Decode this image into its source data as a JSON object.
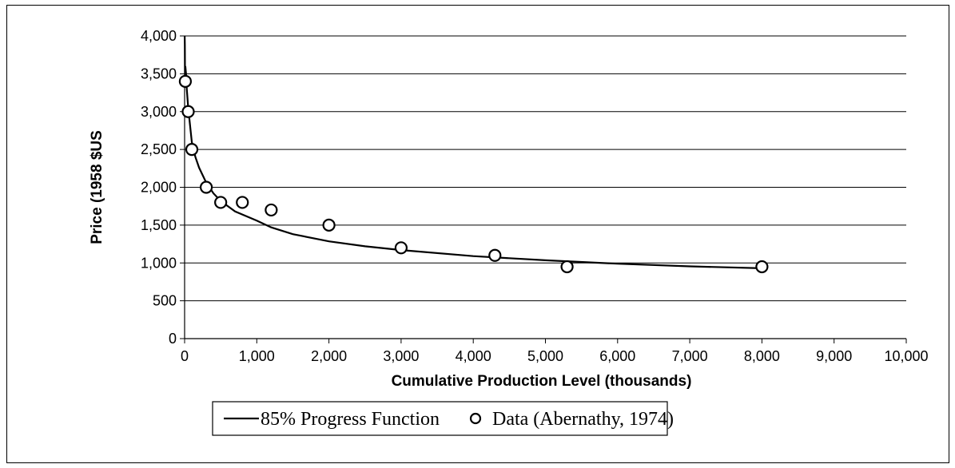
{
  "chart_data": {
    "type": "scatter",
    "title": "",
    "xlabel": "Cumulative Production Level  (thousands)",
    "ylabel": "Price (1958 $US",
    "xlim": [
      0,
      10000
    ],
    "ylim": [
      0,
      4000
    ],
    "x_ticks": [
      "0",
      "1,000",
      "2,000",
      "3,000",
      "4,000",
      "5,000",
      "6,000",
      "7,000",
      "8,000",
      "9,000",
      "10,000"
    ],
    "y_ticks": [
      "0",
      "500",
      "1,000",
      "1,500",
      "2,000",
      "2,500",
      "3,000",
      "3,500",
      "4,000"
    ],
    "x_tick_values": [
      0,
      1000,
      2000,
      3000,
      4000,
      5000,
      6000,
      7000,
      8000,
      9000,
      10000
    ],
    "y_tick_values": [
      0,
      500,
      1000,
      1500,
      2000,
      2500,
      3000,
      3500,
      4000
    ],
    "grid": "horizontal",
    "legend_position": "bottom",
    "series": [
      {
        "name": "85% Progress Function",
        "kind": "line",
        "color": "#000000",
        "x": [
          1,
          3,
          5,
          10,
          20,
          30,
          50,
          100,
          150,
          200,
          300,
          400,
          500,
          700,
          1000,
          1200,
          1500,
          2000,
          2500,
          3000,
          4000,
          5000,
          6000,
          7000,
          8000
        ],
        "y": [
          4600,
          3880,
          3460,
          3600,
          3500,
          3300,
          3050,
          2600,
          2400,
          2260,
          2060,
          1920,
          1820,
          1680,
          1560,
          1470,
          1380,
          1285,
          1220,
          1170,
          1090,
          1035,
          990,
          955,
          930
        ]
      },
      {
        "name": "Data (Abernathy, 1974)",
        "kind": "scatter",
        "color": "#000000",
        "x": [
          10,
          50,
          100,
          300,
          500,
          800,
          1200,
          2000,
          3000,
          4300,
          5300,
          8000
        ],
        "y": [
          3400,
          3000,
          2500,
          2000,
          1800,
          1800,
          1700,
          1500,
          1200,
          1100,
          950,
          950
        ]
      }
    ]
  }
}
